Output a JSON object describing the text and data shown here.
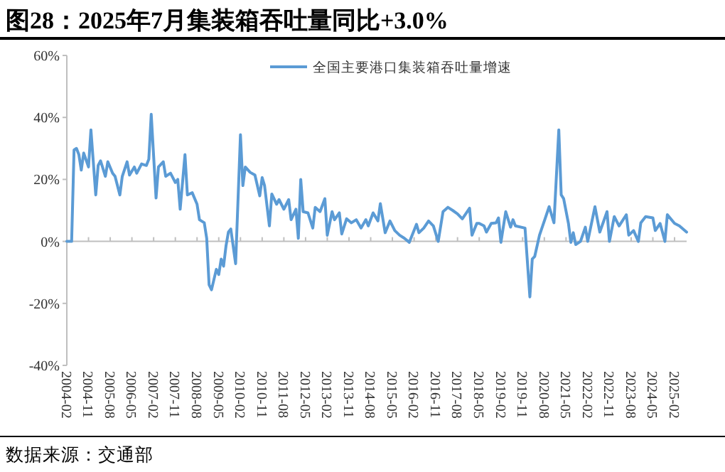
{
  "chart_data": {
    "type": "line",
    "title": "图28：2025年7月集装箱吞吐量同比+3.0%",
    "annotations": [
      "数据来源：交通部"
    ],
    "x": [
      "2004-02",
      "2004-04",
      "2004-05",
      "2004-06",
      "2004-07",
      "2004-08",
      "2004-09",
      "2004-11",
      "2004-12",
      "2005-02",
      "2005-03",
      "2005-04",
      "2005-06",
      "2005-07",
      "2005-09",
      "2005-10",
      "2005-12",
      "2006-01",
      "2006-03",
      "2006-04",
      "2006-06",
      "2006-07",
      "2006-09",
      "2006-11",
      "2006-12",
      "2007-01",
      "2007-03",
      "2007-04",
      "2007-06",
      "2007-07",
      "2007-09",
      "2007-11",
      "2007-12",
      "2008-01",
      "2008-03",
      "2008-04",
      "2008-06",
      "2008-08",
      "2008-09",
      "2008-11",
      "2008-12",
      "2009-01",
      "2009-02",
      "2009-04",
      "2009-05",
      "2009-06",
      "2009-07",
      "2009-08",
      "2009-09",
      "2009-10",
      "2009-12",
      "2010-02",
      "2010-03",
      "2010-04",
      "2010-06",
      "2010-08",
      "2010-10",
      "2010-11",
      "2010-12",
      "2011-02",
      "2011-03",
      "2011-05",
      "2011-06",
      "2011-08",
      "2011-10",
      "2011-11",
      "2012-01",
      "2012-02",
      "2012-03",
      "2012-04",
      "2012-06",
      "2012-08",
      "2012-09",
      "2012-11",
      "2013-01",
      "2013-02",
      "2013-04",
      "2013-05",
      "2013-07",
      "2013-08",
      "2013-10",
      "2013-12",
      "2014-02",
      "2014-04",
      "2014-06",
      "2014-07",
      "2014-09",
      "2014-11",
      "2014-12",
      "2015-02",
      "2015-04",
      "2015-06",
      "2015-08",
      "2015-10",
      "2015-12",
      "2016-03",
      "2016-04",
      "2016-06",
      "2016-08",
      "2016-10",
      "2016-12",
      "2017-02",
      "2017-04",
      "2017-06",
      "2017-08",
      "2017-10",
      "2018-01",
      "2018-02",
      "2018-04",
      "2018-05",
      "2018-07",
      "2018-08",
      "2018-10",
      "2018-12",
      "2019-01",
      "2019-02",
      "2019-04",
      "2019-06",
      "2019-07",
      "2019-08",
      "2019-12",
      "2020-02",
      "2020-03",
      "2020-04",
      "2020-06",
      "2020-08",
      "2020-10",
      "2020-12",
      "2021-02",
      "2021-03",
      "2021-04",
      "2021-06",
      "2021-07",
      "2021-08",
      "2021-09",
      "2021-11",
      "2022-01",
      "2022-02",
      "2022-05",
      "2022-07",
      "2022-10",
      "2022-11",
      "2023-01",
      "2023-03",
      "2023-06",
      "2023-07",
      "2023-09",
      "2023-11",
      "2023-12",
      "2024-02",
      "2024-05",
      "2024-06",
      "2024-08",
      "2024-10",
      "2024-11",
      "2025-02",
      "2025-04",
      "2025-07"
    ],
    "series": [
      {
        "name": "全国主要港口集装箱吞吐量增速",
        "color": "#5b9bd5",
        "values": [
          0,
          0,
          29.5,
          30,
          28,
          23,
          28.5,
          24,
          36,
          15,
          24.5,
          26,
          21,
          25.7,
          22,
          21,
          15,
          21,
          25.7,
          21.4,
          24,
          22,
          25,
          24.5,
          26.5,
          41,
          14,
          24,
          25.7,
          21,
          22,
          19,
          20,
          10.4,
          28,
          15,
          15.7,
          12,
          7,
          6,
          1,
          -14,
          -15.6,
          -9,
          -10.7,
          -5.7,
          -8,
          -1.5,
          3,
          4,
          -7.2,
          34.4,
          18,
          24,
          22.3,
          21.4,
          14.7,
          20.6,
          18,
          5,
          15.3,
          12,
          13.5,
          10.4,
          13.5,
          7,
          10.4,
          1,
          20,
          9.6,
          9.2,
          4.3,
          11,
          9.6,
          13.8,
          2,
          9.6,
          7,
          9.2,
          2.4,
          7.3,
          6,
          7,
          4.3,
          7,
          5,
          9.2,
          6.6,
          12.2,
          2.8,
          6.6,
          3.5,
          2,
          1,
          -0.3,
          5.5,
          2.8,
          4.3,
          6.6,
          5,
          0,
          9.6,
          11,
          10,
          8.9,
          7.3,
          10.7,
          2,
          5.8,
          5.8,
          5,
          3,
          5.8,
          6,
          7.6,
          -0.3,
          9.6,
          4.6,
          7,
          5,
          4.3,
          -17.9,
          -5.7,
          -4.9,
          2,
          6.6,
          11.2,
          6,
          36,
          15,
          13.8,
          5.8,
          -0.3,
          2.8,
          -1,
          0,
          4.6,
          0,
          11.2,
          3,
          9.6,
          0,
          8,
          5,
          8.6,
          2,
          3.5,
          0,
          6,
          8,
          7.6,
          3.5,
          5.8,
          0,
          8.6,
          5.8,
          5,
          3.0
        ]
      }
    ],
    "xlim": [
      "2004-02",
      "2025-07"
    ],
    "xticks": [
      "2004-02",
      "2004-11",
      "2005-08",
      "2006-05",
      "2007-02",
      "2007-11",
      "2008-08",
      "2009-05",
      "2010-02",
      "2010-11",
      "2011-08",
      "2012-05",
      "2013-02",
      "2013-11",
      "2014-08",
      "2015-05",
      "2016-02",
      "2016-11",
      "2017-08",
      "2018-05",
      "2019-02",
      "2019-11",
      "2020-08",
      "2021-05",
      "2022-02",
      "2022-11",
      "2023-08",
      "2024-05",
      "2025-02"
    ],
    "ylim": [
      -40,
      60
    ],
    "yticks": [
      {
        "value": -40,
        "label": "-40%"
      },
      {
        "value": -20,
        "label": "-20%"
      },
      {
        "value": 0,
        "label": "0%"
      },
      {
        "value": 20,
        "label": "20%"
      },
      {
        "value": 40,
        "label": "40%"
      },
      {
        "value": 60,
        "label": "60%"
      }
    ],
    "legend": "top",
    "marker": "none",
    "line_style": "solid"
  }
}
